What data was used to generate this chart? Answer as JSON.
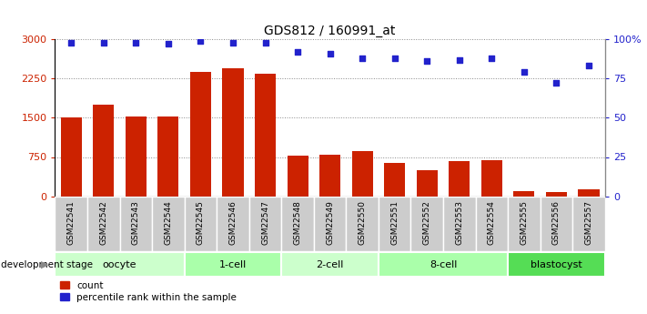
{
  "title": "GDS812 / 160991_at",
  "samples": [
    "GSM22541",
    "GSM22542",
    "GSM22543",
    "GSM22544",
    "GSM22545",
    "GSM22546",
    "GSM22547",
    "GSM22548",
    "GSM22549",
    "GSM22550",
    "GSM22551",
    "GSM22552",
    "GSM22553",
    "GSM22554",
    "GSM22555",
    "GSM22556",
    "GSM22557"
  ],
  "counts": [
    1500,
    1750,
    1530,
    1530,
    2380,
    2450,
    2340,
    780,
    800,
    870,
    640,
    490,
    680,
    690,
    100,
    75,
    140
  ],
  "percentiles": [
    98,
    98,
    98,
    97,
    99,
    98,
    98,
    92,
    91,
    88,
    88,
    86,
    87,
    88,
    79,
    72,
    83
  ],
  "stages": [
    {
      "label": "oocyte",
      "start": 0,
      "end": 4,
      "color": "#ccffcc"
    },
    {
      "label": "1-cell",
      "start": 4,
      "end": 7,
      "color": "#aaffaa"
    },
    {
      "label": "2-cell",
      "start": 7,
      "end": 10,
      "color": "#ccffcc"
    },
    {
      "label": "8-cell",
      "start": 10,
      "end": 14,
      "color": "#aaffaa"
    },
    {
      "label": "blastocyst",
      "start": 14,
      "end": 17,
      "color": "#55dd55"
    }
  ],
  "ylim_left": [
    0,
    3000
  ],
  "ylim_right": [
    0,
    100
  ],
  "yticks_left": [
    0,
    750,
    1500,
    2250,
    3000
  ],
  "yticks_right": [
    0,
    25,
    50,
    75,
    100
  ],
  "bar_color": "#cc2200",
  "dot_color": "#2222cc",
  "plot_bg": "#ffffff",
  "label_bg": "#cccccc",
  "grid_color": "#888888",
  "stage_colors": [
    "#ccffcc",
    "#aaffaa",
    "#ccffcc",
    "#aaffaa",
    "#55dd55"
  ]
}
